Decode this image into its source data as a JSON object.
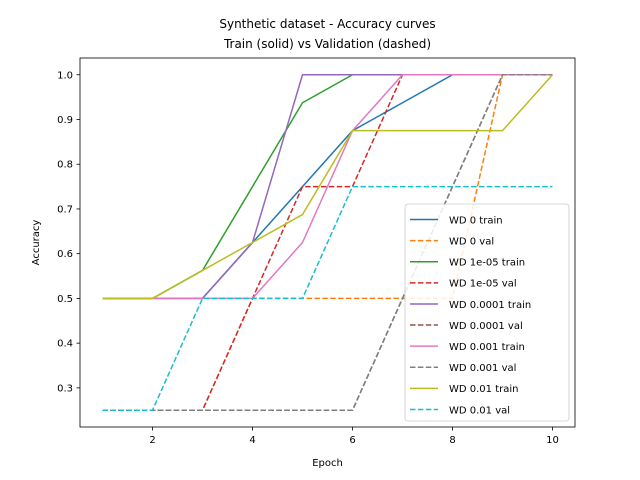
{
  "chart_data": {
    "type": "line",
    "title": "Synthetic dataset - Accuracy curves",
    "subtitle": "Train (solid) vs Validation (dashed)",
    "xlabel": "Epoch",
    "ylabel": "Accuracy",
    "xlim": [
      0.55,
      10.45
    ],
    "ylim": [
      0.2125,
      1.0375
    ],
    "xticks": [
      2,
      4,
      6,
      8,
      10
    ],
    "yticks": [
      0.3,
      0.4,
      0.5,
      0.6,
      0.7,
      0.8,
      0.9,
      1.0
    ],
    "ytick_labels": [
      "0.3",
      "0.4",
      "0.5",
      "0.6",
      "0.7",
      "0.8",
      "0.9",
      "1.0"
    ],
    "grid": false,
    "legend_position": "lower-right",
    "x": [
      1,
      2,
      3,
      4,
      5,
      6,
      7,
      8,
      9,
      10
    ],
    "series": [
      {
        "name": "WD 0 train",
        "style": "solid",
        "color": "#1f77b4",
        "values": [
          0.5,
          0.5,
          0.5,
          0.625,
          0.75,
          0.875,
          0.9375,
          1.0,
          1.0,
          1.0
        ]
      },
      {
        "name": "WD 0 val",
        "style": "dashed",
        "color": "#ff7f0e",
        "values": [
          0.25,
          0.25,
          0.25,
          0.5,
          0.5,
          0.5,
          0.5,
          0.5,
          1.0,
          1.0
        ]
      },
      {
        "name": "WD 1e-05 train",
        "style": "solid",
        "color": "#2ca02c",
        "values": [
          0.5,
          0.5,
          0.5625,
          0.75,
          0.9375,
          1.0,
          1.0,
          1.0,
          1.0,
          1.0
        ]
      },
      {
        "name": "WD 1e-05 val",
        "style": "dashed",
        "color": "#d62728",
        "values": [
          0.25,
          0.25,
          0.25,
          0.5,
          0.75,
          0.75,
          1.0,
          1.0,
          1.0,
          1.0
        ]
      },
      {
        "name": "WD 0.0001 train",
        "style": "solid",
        "color": "#9467bd",
        "values": [
          0.5,
          0.5,
          0.5,
          0.625,
          1.0,
          1.0,
          1.0,
          1.0,
          1.0,
          1.0
        ]
      },
      {
        "name": "WD 0.0001 val",
        "style": "dashed",
        "color": "#8c564b",
        "values": [
          0.25,
          0.25,
          0.25,
          0.25,
          0.25,
          0.25,
          0.5,
          0.75,
          1.0,
          1.0
        ]
      },
      {
        "name": "WD 0.001 train",
        "style": "solid",
        "color": "#e377c2",
        "values": [
          0.5,
          0.5,
          0.5,
          0.5,
          0.625,
          0.875,
          1.0,
          1.0,
          1.0,
          1.0
        ]
      },
      {
        "name": "WD 0.001 val",
        "style": "dashed",
        "color": "#7f7f7f",
        "values": [
          0.25,
          0.25,
          0.25,
          0.25,
          0.25,
          0.25,
          0.5,
          0.75,
          1.0,
          1.0
        ]
      },
      {
        "name": "WD 0.01 train",
        "style": "solid",
        "color": "#bcbd22",
        "values": [
          0.5,
          0.5,
          0.5625,
          0.625,
          0.6875,
          0.875,
          0.875,
          0.875,
          0.875,
          1.0
        ]
      },
      {
        "name": "WD 0.01 val",
        "style": "dashed",
        "color": "#17becf",
        "values": [
          0.25,
          0.25,
          0.5,
          0.5,
          0.5,
          0.75,
          0.75,
          0.75,
          0.75,
          0.75
        ]
      }
    ]
  }
}
